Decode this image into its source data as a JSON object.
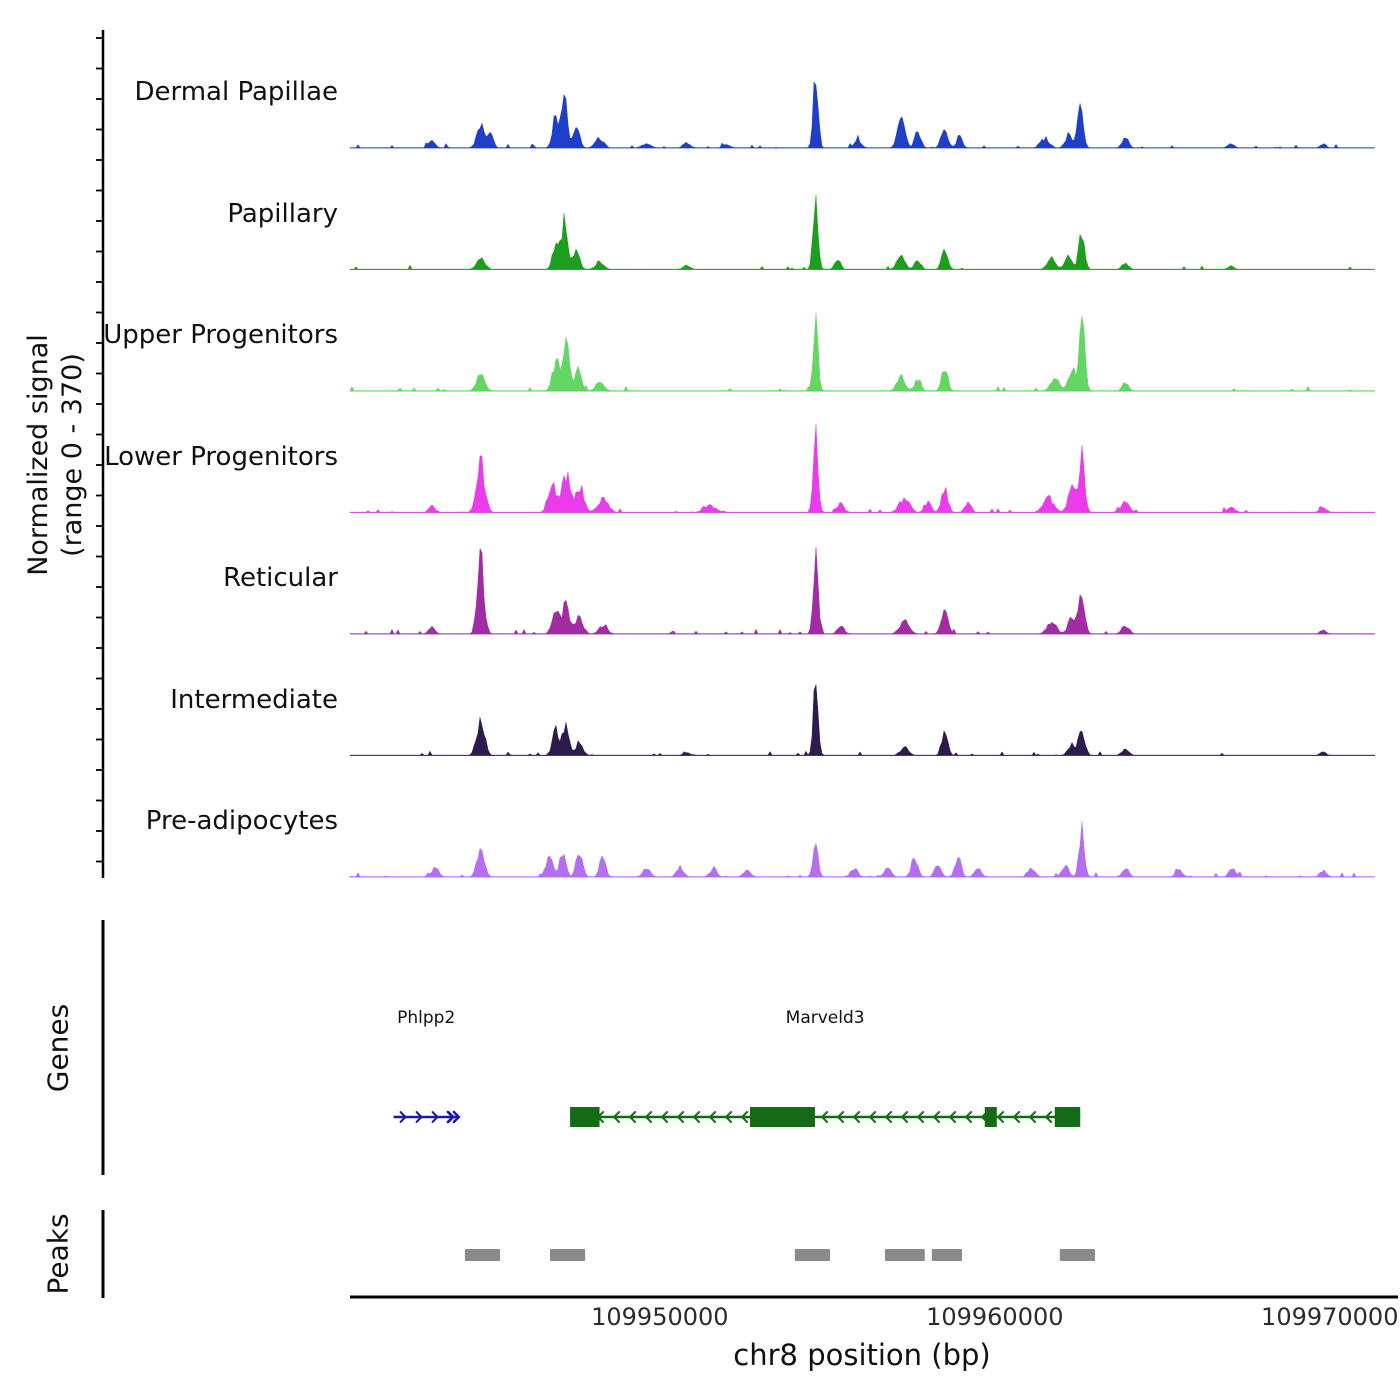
{
  "figure": {
    "y_axis_label_line1": "Normalized signal",
    "y_axis_label_line2": "(range 0 - 370)",
    "genes_section_label": "Genes",
    "peaks_section_label": "Peaks"
  },
  "chart_data": {
    "type": "area",
    "title": "",
    "x_range": [
      109940750,
      109971350
    ],
    "signal_range": [
      0,
      370
    ],
    "x_axis": {
      "title": "chr8 position (bp)",
      "ticks": [
        {
          "value": 109950000,
          "label": "109950000"
        },
        {
          "value": 109960000,
          "label": "109960000"
        },
        {
          "value": 109970000,
          "label": "109970000"
        }
      ]
    },
    "tracks": [
      {
        "label": "Dermal Papillae",
        "color": "#1f3ec9",
        "peaks": [
          [
            109943200,
            0.1,
            140
          ],
          [
            109944650,
            0.3,
            160
          ],
          [
            109944950,
            0.15,
            120
          ],
          [
            109946900,
            0.38,
            140
          ],
          [
            109947150,
            0.72,
            110
          ],
          [
            109947500,
            0.3,
            130
          ],
          [
            109948200,
            0.12,
            180
          ],
          [
            109949600,
            0.05,
            200
          ],
          [
            109950800,
            0.07,
            150
          ],
          [
            109952000,
            0.05,
            150
          ],
          [
            109954650,
            1.0,
            100
          ],
          [
            109955900,
            0.1,
            150
          ],
          [
            109957200,
            0.33,
            160
          ],
          [
            109957700,
            0.2,
            130
          ],
          [
            109958500,
            0.25,
            140
          ],
          [
            109958950,
            0.16,
            120
          ],
          [
            109961500,
            0.12,
            180
          ],
          [
            109962200,
            0.16,
            140
          ],
          [
            109962550,
            0.52,
            120
          ],
          [
            109963900,
            0.13,
            140
          ],
          [
            109967050,
            0.05,
            140
          ],
          [
            109969800,
            0.05,
            130
          ]
        ]
      },
      {
        "label": "Papillary",
        "color": "#1e9e1e",
        "peaks": [
          [
            109944650,
            0.16,
            170
          ],
          [
            109946900,
            0.3,
            140
          ],
          [
            109947150,
            0.55,
            120
          ],
          [
            109947500,
            0.24,
            140
          ],
          [
            109948200,
            0.08,
            180
          ],
          [
            109950800,
            0.05,
            150
          ],
          [
            109954650,
            1.0,
            100
          ],
          [
            109955300,
            0.14,
            120
          ],
          [
            109957200,
            0.16,
            170
          ],
          [
            109957700,
            0.12,
            130
          ],
          [
            109958500,
            0.24,
            130
          ],
          [
            109961700,
            0.13,
            180
          ],
          [
            109962200,
            0.18,
            140
          ],
          [
            109962600,
            0.45,
            120
          ],
          [
            109963900,
            0.08,
            140
          ],
          [
            109967050,
            0.04,
            140
          ]
        ]
      },
      {
        "label": "Upper Progenitors",
        "color": "#63d663",
        "peaks": [
          [
            109944650,
            0.24,
            170
          ],
          [
            109946900,
            0.36,
            150
          ],
          [
            109947200,
            0.58,
            130
          ],
          [
            109947550,
            0.26,
            140
          ],
          [
            109948200,
            0.1,
            180
          ],
          [
            109954650,
            0.95,
            100
          ],
          [
            109957200,
            0.18,
            170
          ],
          [
            109957700,
            0.14,
            130
          ],
          [
            109958500,
            0.3,
            130
          ],
          [
            109961800,
            0.16,
            180
          ],
          [
            109962300,
            0.28,
            140
          ],
          [
            109962600,
            0.82,
            120
          ],
          [
            109963900,
            0.1,
            140
          ]
        ]
      },
      {
        "label": "Lower Progenitors",
        "color": "#ea3cea",
        "peaks": [
          [
            109943200,
            0.08,
            140
          ],
          [
            109944650,
            0.6,
            170
          ],
          [
            109946800,
            0.32,
            180
          ],
          [
            109947200,
            0.45,
            160
          ],
          [
            109947600,
            0.32,
            180
          ],
          [
            109948300,
            0.16,
            220
          ],
          [
            109951500,
            0.08,
            250
          ],
          [
            109954650,
            1.0,
            100
          ],
          [
            109955400,
            0.12,
            140
          ],
          [
            109957300,
            0.16,
            220
          ],
          [
            109958000,
            0.12,
            140
          ],
          [
            109958500,
            0.28,
            140
          ],
          [
            109959200,
            0.12,
            140
          ],
          [
            109961600,
            0.18,
            220
          ],
          [
            109962300,
            0.32,
            160
          ],
          [
            109962600,
            0.72,
            120
          ],
          [
            109963900,
            0.13,
            180
          ],
          [
            109967050,
            0.06,
            180
          ],
          [
            109969800,
            0.06,
            140
          ]
        ]
      },
      {
        "label": "Reticular",
        "color": "#a22da2",
        "peaks": [
          [
            109943200,
            0.08,
            140
          ],
          [
            109944650,
            0.88,
            140
          ],
          [
            109946900,
            0.26,
            160
          ],
          [
            109947200,
            0.4,
            140
          ],
          [
            109947600,
            0.2,
            160
          ],
          [
            109948300,
            0.1,
            180
          ],
          [
            109954650,
            0.95,
            100
          ],
          [
            109955400,
            0.1,
            140
          ],
          [
            109957300,
            0.16,
            200
          ],
          [
            109958500,
            0.3,
            140
          ],
          [
            109961700,
            0.15,
            200
          ],
          [
            109962300,
            0.24,
            150
          ],
          [
            109962600,
            0.5,
            120
          ],
          [
            109963900,
            0.1,
            160
          ],
          [
            109969800,
            0.05,
            130
          ]
        ]
      },
      {
        "label": "Intermediate",
        "color": "#2e1b4d",
        "peaks": [
          [
            109944650,
            0.45,
            160
          ],
          [
            109946900,
            0.3,
            150
          ],
          [
            109947200,
            0.4,
            130
          ],
          [
            109947600,
            0.16,
            150
          ],
          [
            109950800,
            0.04,
            150
          ],
          [
            109954650,
            0.88,
            100
          ],
          [
            109957300,
            0.1,
            180
          ],
          [
            109958500,
            0.27,
            130
          ],
          [
            109962300,
            0.14,
            160
          ],
          [
            109962600,
            0.3,
            130
          ],
          [
            109963900,
            0.08,
            150
          ],
          [
            109969800,
            0.04,
            130
          ]
        ]
      },
      {
        "label": "Pre-adipocytes",
        "color": "#b56ef2",
        "peaks": [
          [
            109943300,
            0.1,
            160
          ],
          [
            109944650,
            0.3,
            160
          ],
          [
            109946700,
            0.24,
            150
          ],
          [
            109947100,
            0.3,
            130
          ],
          [
            109947600,
            0.32,
            130
          ],
          [
            109948300,
            0.3,
            120
          ],
          [
            109949600,
            0.1,
            160
          ],
          [
            109950600,
            0.12,
            150
          ],
          [
            109951600,
            0.1,
            150
          ],
          [
            109952600,
            0.08,
            150
          ],
          [
            109954650,
            0.38,
            110
          ],
          [
            109955800,
            0.1,
            150
          ],
          [
            109956800,
            0.12,
            150
          ],
          [
            109957600,
            0.22,
            140
          ],
          [
            109958300,
            0.16,
            130
          ],
          [
            109958900,
            0.24,
            130
          ],
          [
            109959500,
            0.12,
            140
          ],
          [
            109961100,
            0.1,
            150
          ],
          [
            109962100,
            0.14,
            150
          ],
          [
            109962600,
            0.62,
            110
          ],
          [
            109963900,
            0.1,
            150
          ],
          [
            109965500,
            0.08,
            150
          ],
          [
            109967100,
            0.1,
            150
          ],
          [
            109969800,
            0.08,
            140
          ]
        ]
      }
    ],
    "genes": [
      {
        "name": "Phlpp2",
        "color": "#1a1aaa",
        "strand": "+",
        "start": 109942050,
        "end": 109944000,
        "exons": []
      },
      {
        "name": "Marveld3",
        "color": "#156b15",
        "strand": "-",
        "start": 109947320,
        "end": 109962550,
        "exons": [
          [
            109947320,
            109948200
          ],
          [
            109952690,
            109954630
          ],
          [
            109959700,
            109960060
          ],
          [
            109961790,
            109962550
          ]
        ]
      }
    ],
    "peak_regions": [
      [
        109944180,
        109945230
      ],
      [
        109946720,
        109947770
      ],
      [
        109954030,
        109955080
      ],
      [
        109956720,
        109957910
      ],
      [
        109958120,
        109959020
      ],
      [
        109961940,
        109962990
      ]
    ]
  }
}
